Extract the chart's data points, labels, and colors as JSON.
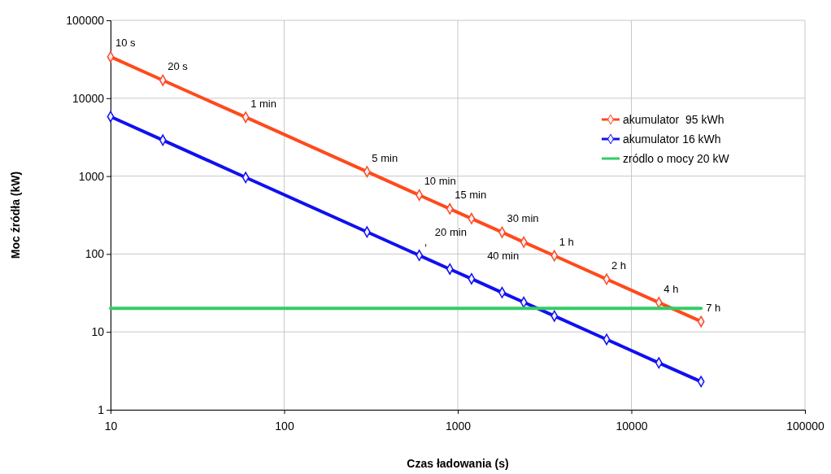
{
  "chart_data": {
    "type": "line",
    "xlabel": "Czas ładowania (s)",
    "ylabel": "Moc źródła (kW)",
    "log": "xy",
    "grid": true,
    "legend": "top right",
    "marker": "diamond",
    "line_style": "solid",
    "xlim": [
      10,
      100000
    ],
    "xticks": [
      10,
      100,
      1000,
      10000,
      100000
    ],
    "ylim": [
      1,
      100000
    ],
    "yticks": [
      1,
      10,
      100,
      1000,
      10000,
      100000
    ],
    "series": [
      {
        "name": "akumulator  95 kWh",
        "color": "#ff4a1c",
        "x": [
          10,
          20,
          60,
          300,
          600,
          900,
          1200,
          1800,
          2400,
          3600,
          7200,
          14400,
          25200
        ],
        "values": [
          34000,
          17000,
          5700,
          1140,
          570,
          380,
          285,
          190,
          142,
          95,
          47.5,
          23.8,
          13.6
        ]
      },
      {
        "name": "akumulator 16 kWh",
        "color": "#1010f0",
        "x": [
          10,
          20,
          60,
          300,
          600,
          900,
          1200,
          1800,
          2400,
          3600,
          7200,
          14400,
          25200
        ],
        "values": [
          5800,
          2900,
          960,
          192,
          96,
          64,
          48,
          32,
          24,
          16,
          8,
          4,
          2.3
        ]
      },
      {
        "name": "zródlo o mocy 20 kW",
        "color": "#33cc66",
        "marker": "none",
        "x": [
          10,
          25200
        ],
        "values": [
          20,
          20
        ]
      }
    ],
    "annotations": [
      {
        "text": "10 s",
        "x": 10,
        "y": 34000
      },
      {
        "text": "20 s",
        "x": 20,
        "y": 17000
      },
      {
        "text": "1 min",
        "x": 60,
        "y": 5700
      },
      {
        "text": "5 min",
        "x": 300,
        "y": 1140
      },
      {
        "text": "10 min",
        "x": 600,
        "y": 570
      },
      {
        "text": "15 min",
        "x": 900,
        "y": 380
      },
      {
        "text": "20 min",
        "x": 1200,
        "y": 285
      },
      {
        "text": "30 min",
        "x": 1800,
        "y": 190
      },
      {
        "text": "40 min",
        "x": 2400,
        "y": 142
      },
      {
        "text": "1 h",
        "x": 3600,
        "y": 95
      },
      {
        "text": "2 h",
        "x": 7200,
        "y": 47.5
      },
      {
        "text": "4 h",
        "x": 14400,
        "y": 23.8
      },
      {
        "text": "7 h",
        "x": 25200,
        "y": 13.6
      },
      {
        "text": ",",
        "x": 600,
        "y": 96
      }
    ]
  }
}
